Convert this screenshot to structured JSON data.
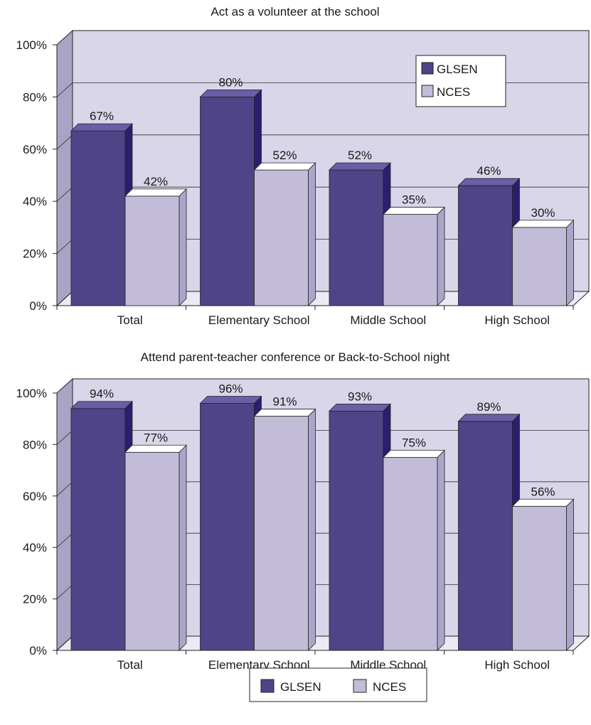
{
  "colors": {
    "glsen": "#4e4487",
    "glsen_side": "#2a1f6d",
    "glsen_top": "#6a5fa6",
    "nces": "#c2bcd8",
    "nces_side": "#aca5c8",
    "nces_top": "#ffffff",
    "wall": "#d8d6e8",
    "left_wall": "#a9a3c6",
    "floor": "#ebeaf4"
  },
  "bottom_legend": {
    "items": [
      {
        "label": "GLSEN",
        "color": "#4e4487"
      },
      {
        "label": "NCES",
        "color": "#c2bcd8"
      }
    ]
  },
  "chart_data": [
    {
      "type": "bar",
      "title": "Act as a volunteer at the school",
      "categories": [
        "Total",
        "Elementary School",
        "Middle School",
        "High School"
      ],
      "series": [
        {
          "name": "GLSEN",
          "values": [
            67,
            80,
            52,
            46
          ]
        },
        {
          "name": "NCES",
          "values": [
            42,
            52,
            35,
            30
          ]
        }
      ],
      "data_labels": {
        "GLSEN": [
          "67%",
          "80%",
          "52%",
          "46%"
        ],
        "NCES": [
          "42%",
          "52%",
          "35%",
          "30%"
        ]
      },
      "ylim": [
        0,
        100
      ],
      "yticks": [
        "0%",
        "20%",
        "40%",
        "60%",
        "80%",
        "100%"
      ],
      "grid": true,
      "legend": {
        "placement": "top-right",
        "entries": [
          "GLSEN",
          "NCES"
        ]
      },
      "style": "3d"
    },
    {
      "type": "bar",
      "title": "Attend parent-teacher conference or Back-to-School night",
      "categories": [
        "Total",
        "Elementary School",
        "Middle School",
        "High School"
      ],
      "series": [
        {
          "name": "GLSEN",
          "values": [
            94,
            96,
            93,
            89
          ]
        },
        {
          "name": "NCES",
          "values": [
            77,
            91,
            75,
            56
          ]
        }
      ],
      "data_labels": {
        "GLSEN": [
          "94%",
          "96%",
          "93%",
          "89%"
        ],
        "NCES": [
          "77%",
          "91%",
          "75%",
          "56%"
        ]
      },
      "ylim": [
        0,
        100
      ],
      "yticks": [
        "0%",
        "20%",
        "40%",
        "60%",
        "80%",
        "100%"
      ],
      "grid": true,
      "legend": {
        "placement": "bottom"
      },
      "style": "3d"
    }
  ]
}
